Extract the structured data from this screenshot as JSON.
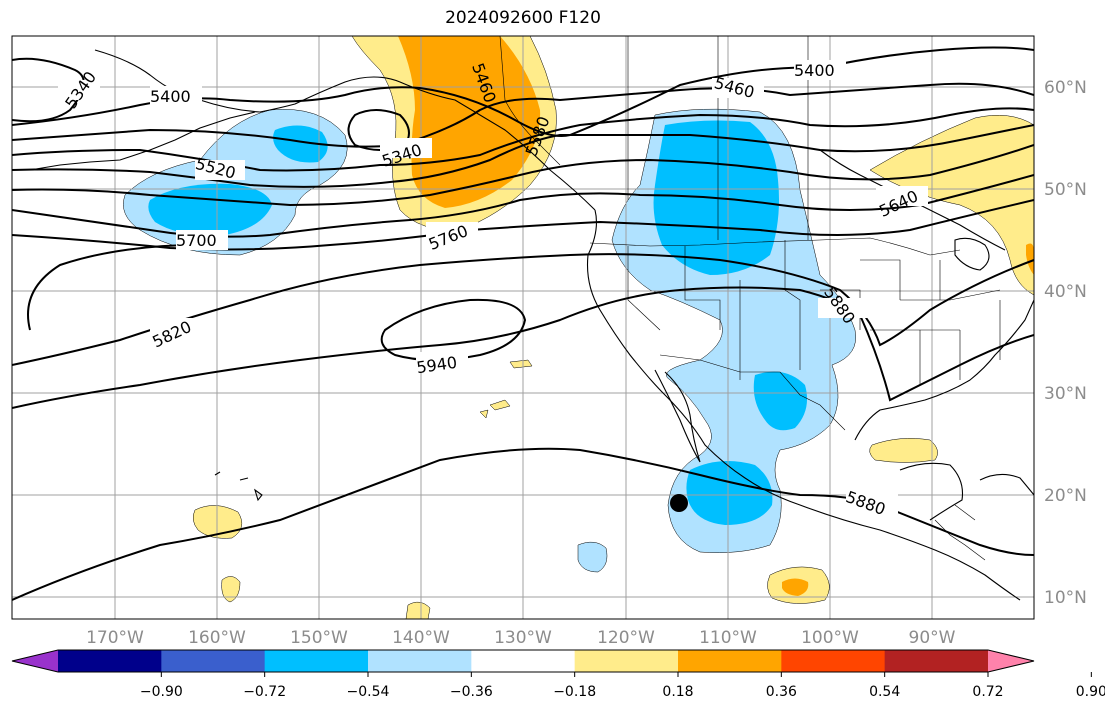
{
  "title": "2024092600 F120",
  "longitude_labels": [
    "170°W",
    "160°W",
    "150°W",
    "140°W",
    "130°W",
    "120°W",
    "110°W",
    "100°W",
    "90°W"
  ],
  "latitude_labels": [
    "60°N",
    "50°N",
    "40°N",
    "30°N",
    "20°N",
    "10°N"
  ],
  "contour_labels": [
    "5340",
    "5400",
    "5520",
    "5700",
    "5820",
    "5940",
    "5460",
    "5400",
    "5880",
    "5880",
    "5760",
    "5340",
    "5640",
    "5460",
    "5580"
  ],
  "colorbar": {
    "colors": [
      "#9932cc",
      "#00008b",
      "#3a5fcd",
      "#00bfff",
      "#b0e2ff",
      "#ffffff",
      "#ffec8b",
      "#ffa500",
      "#ff4500",
      "#b22222",
      "#ff82ab"
    ],
    "tick_labels": [
      "−0.90",
      "−0.72",
      "−0.54",
      "−0.36",
      "−0.18",
      "0.18",
      "0.36",
      "0.54",
      "0.72",
      "0.90"
    ]
  },
  "fill_colors": {
    "light_blue": "#b0e2ff",
    "blue": "#00bfff",
    "yellow": "#ffec8b",
    "orange": "#ffa500"
  },
  "marker": {
    "name": "storm-center"
  }
}
